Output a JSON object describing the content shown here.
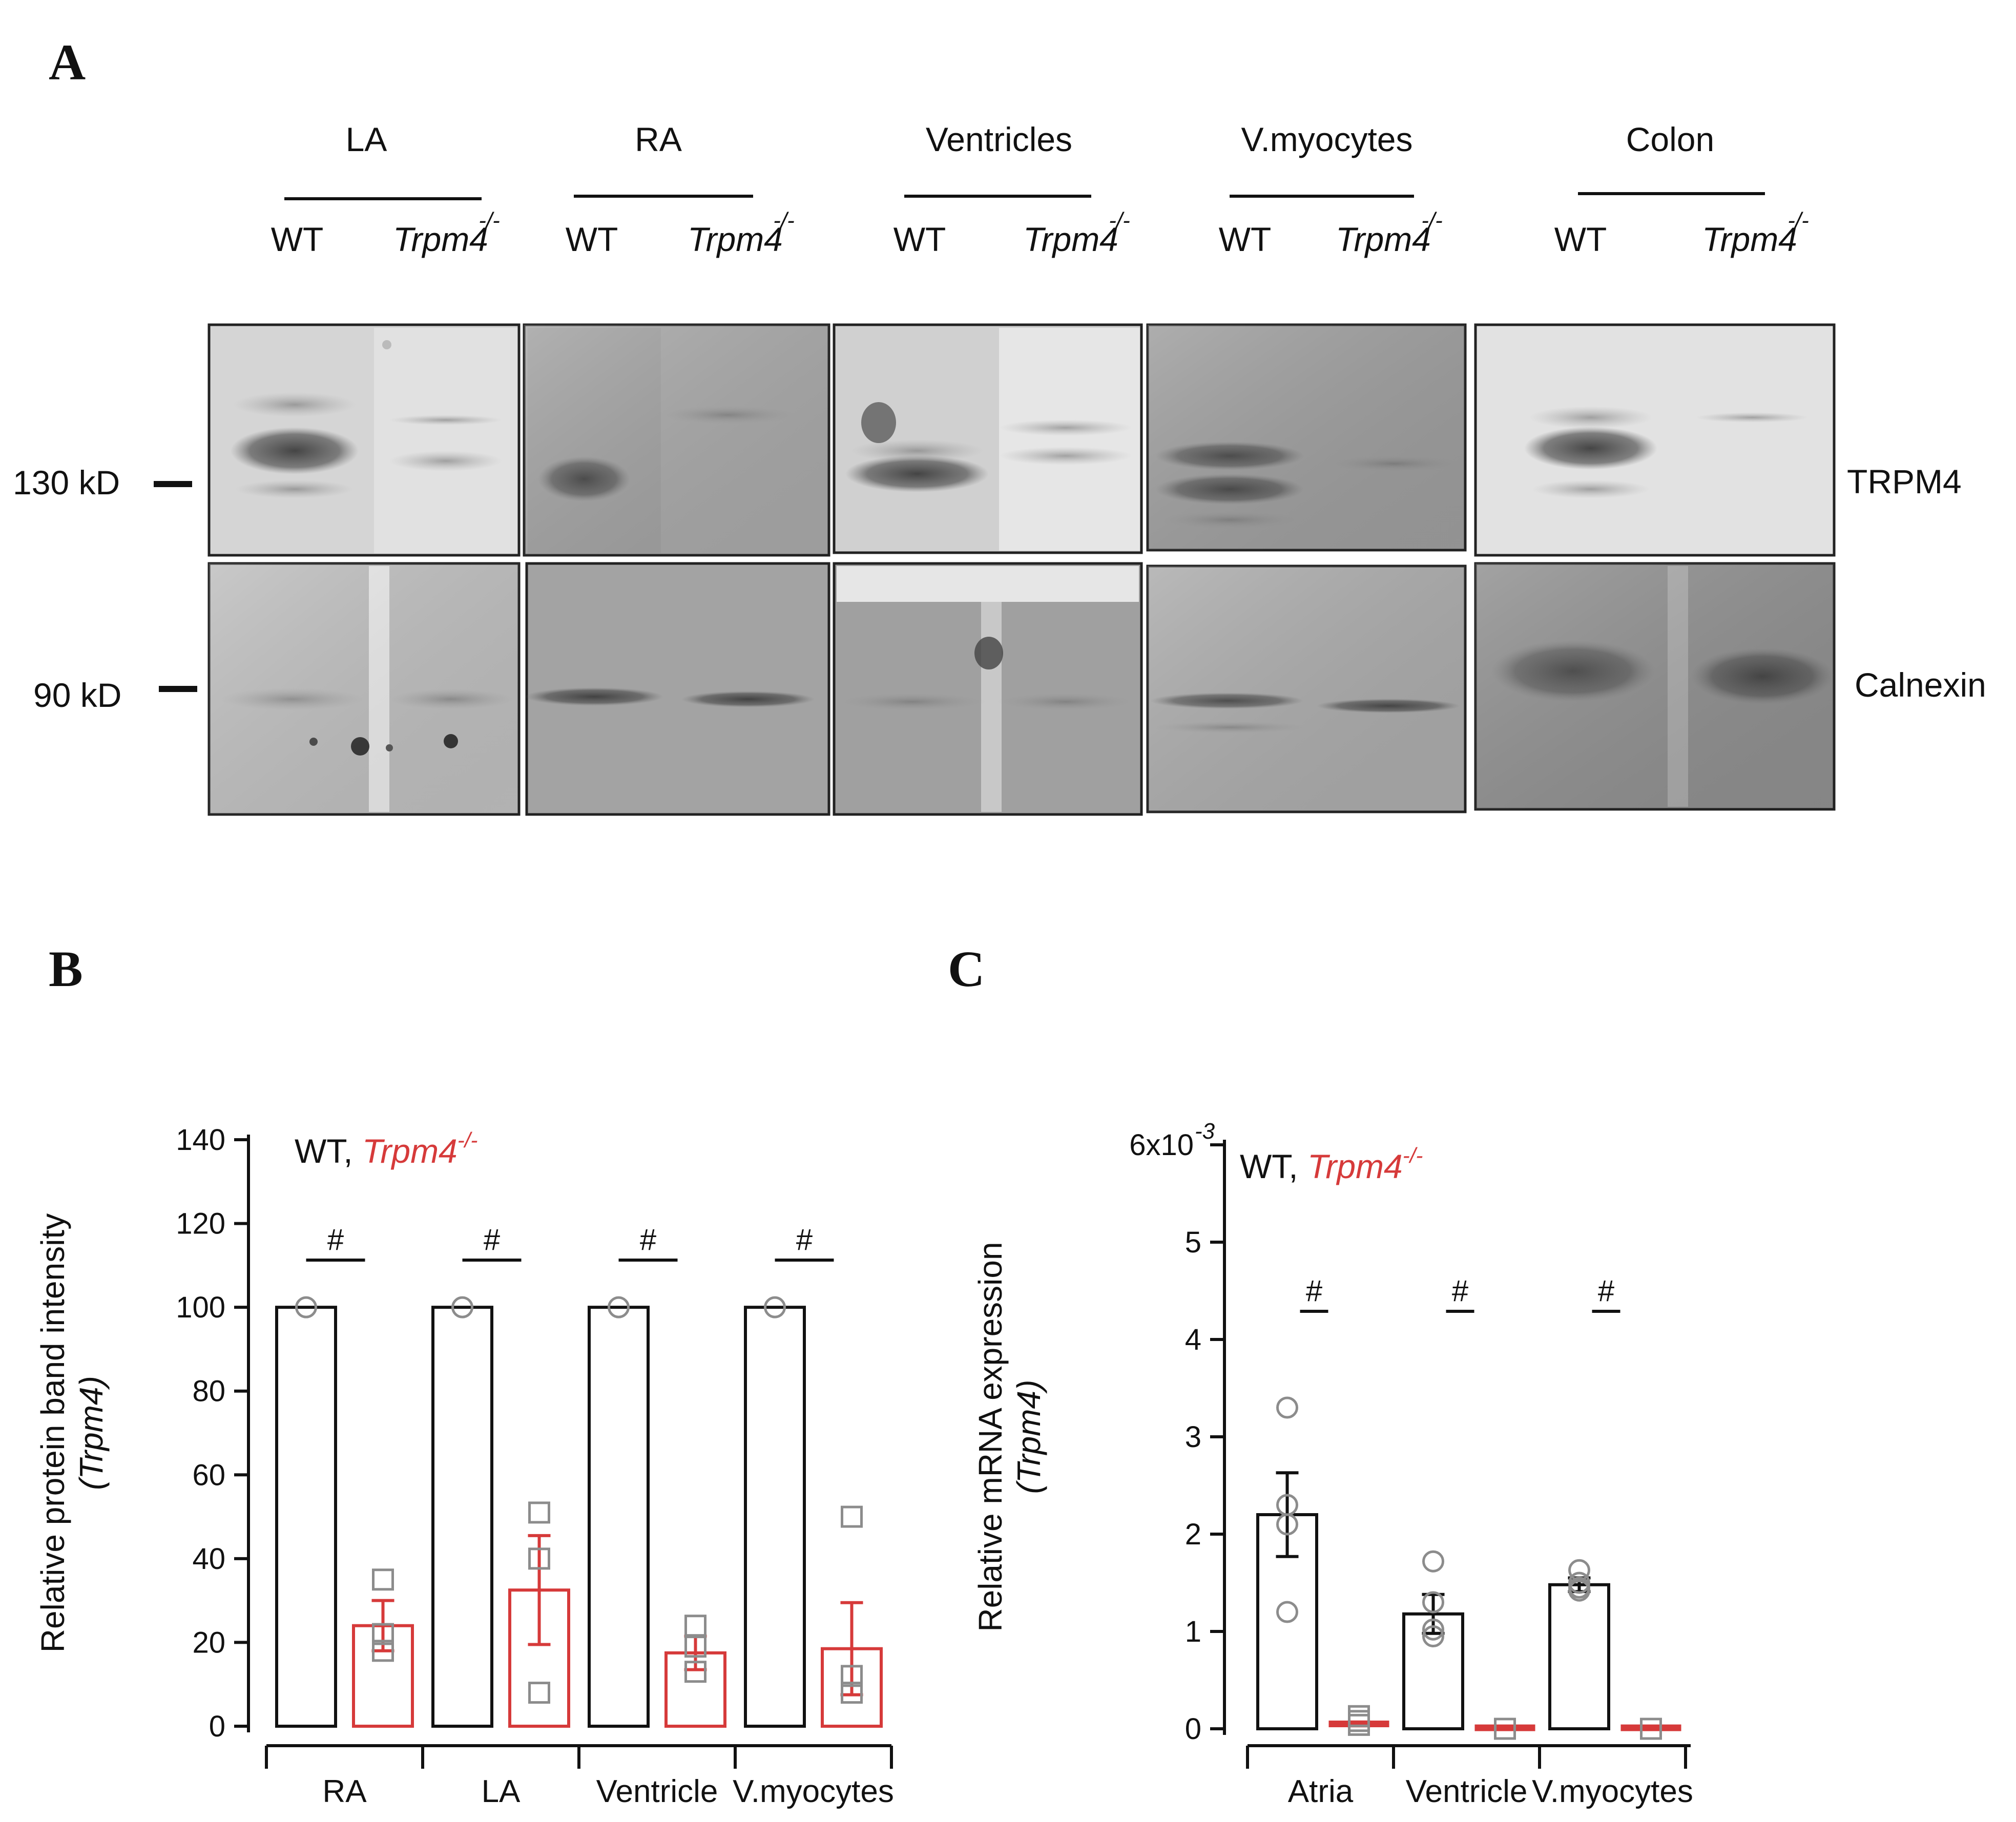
{
  "panel_a": {
    "letter": "A",
    "tissues": [
      {
        "name": "LA",
        "wt": "WT",
        "ko": "Trpm4",
        "ko_sup": "-/-"
      },
      {
        "name": "RA",
        "wt": "WT",
        "ko": "Trpm4",
        "ko_sup": "-/-"
      },
      {
        "name": "Ventricles",
        "wt": "WT",
        "ko": "Trpm4",
        "ko_sup": "-/-"
      },
      {
        "name": "V.myocytes",
        "wt": "WT",
        "ko": "Trpm4",
        "ko_sup": "-/-"
      },
      {
        "name": "Colon",
        "wt": "WT",
        "ko": "Trpm4",
        "ko_sup": "-/-"
      }
    ],
    "markers": {
      "upper": "130 kD",
      "lower": "90 kD"
    },
    "proteins": {
      "upper": "TRPM4",
      "lower": "Calnexin"
    }
  },
  "panel_b": {
    "letter": "B"
  },
  "panel_c": {
    "letter": "C"
  },
  "colors": {
    "wt": "#111111",
    "ko": "#d63a3a",
    "points": "#8c8c8c"
  },
  "chart_data": [
    {
      "type": "bar",
      "ylabel": "Relative protein band intensity",
      "ylabel2": "(Trpm4)",
      "ylim": [
        0,
        140
      ],
      "yticks": [
        "0",
        "20",
        "40",
        "60",
        "80",
        "100",
        "120",
        "140"
      ],
      "legend": {
        "wt": "WT,",
        "ko": "Trpm4",
        "ko_sup": "-/-"
      },
      "categories": [
        "RA",
        "LA",
        "Ventricle",
        "V.myocytes"
      ],
      "significance": [
        "#",
        "#",
        "#",
        "#"
      ],
      "series": [
        {
          "name": "WT",
          "values": [
            100,
            100,
            100,
            100
          ],
          "sem": [
            0,
            0,
            0,
            0
          ],
          "points": [
            [
              100
            ],
            [
              100
            ],
            [
              100
            ],
            [
              100
            ]
          ]
        },
        {
          "name": "Trpm4-/-",
          "values": [
            24,
            32.5,
            17.5,
            18.5
          ],
          "sem": [
            6,
            13,
            4,
            11
          ],
          "points": [
            [
              35,
              22,
              18
            ],
            [
              51,
              40,
              8
            ],
            [
              24,
              19,
              13
            ],
            [
              50,
              12,
              8
            ]
          ]
        }
      ]
    },
    {
      "type": "bar",
      "ylabel": "Relative mRNA expression",
      "ylabel2": "(Trpm4)",
      "ylim": [
        0,
        6
      ],
      "yticks": [
        "0",
        "1",
        "2",
        "3",
        "4",
        "5"
      ],
      "top_tick": "6x10",
      "top_tick_sup": "-3",
      "legend": {
        "wt": "WT,",
        "ko": "Trpm4",
        "ko_sup": "-/-"
      },
      "categories": [
        "Atria",
        "Ventricle",
        "V.myocytes"
      ],
      "significance": [
        "#",
        "#",
        "#"
      ],
      "series": [
        {
          "name": "WT",
          "values": [
            2.2,
            1.18,
            1.48
          ],
          "sem": [
            0.43,
            0.2,
            0.07
          ],
          "points": [
            [
              3.3,
              2.3,
              2.1,
              1.2
            ],
            [
              1.72,
              1.3,
              1.02,
              0.95
            ],
            [
              1.63,
              1.5,
              1.45,
              1.42
            ]
          ]
        },
        {
          "name": "Trpm4-/-",
          "values": [
            0.05,
            0.01,
            0.01
          ],
          "sem": [
            0.02,
            0.0,
            0.0
          ],
          "points": [
            [
              0.13,
              0.08,
              0.04
            ],
            [
              0.0
            ],
            [
              0.0
            ]
          ]
        }
      ]
    }
  ]
}
